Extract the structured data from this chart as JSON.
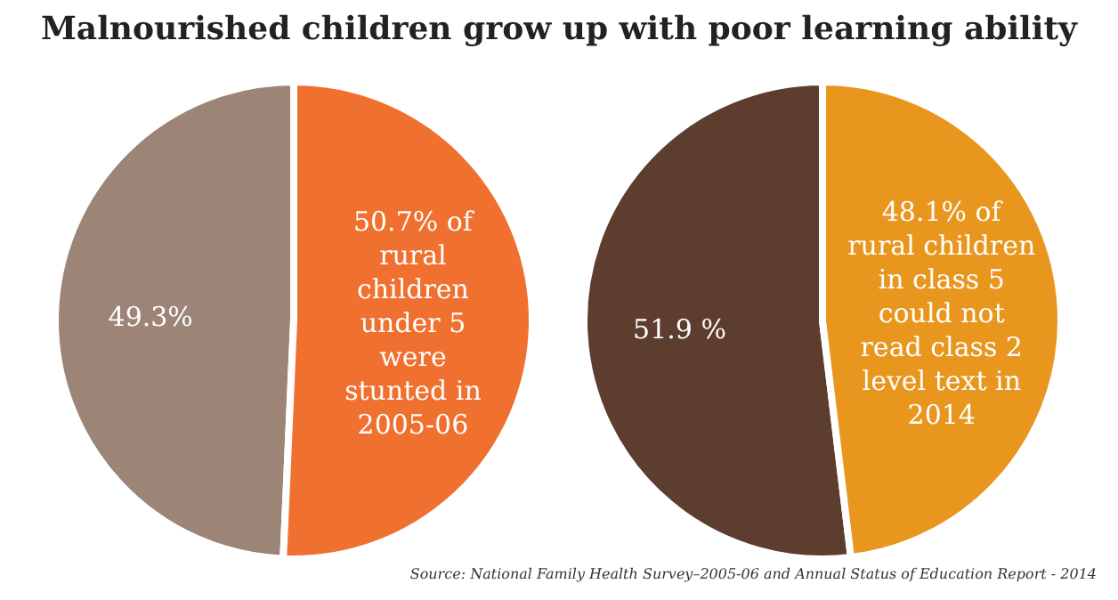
{
  "chart_data": [
    {
      "type": "pie",
      "title": "Malnourished children grow up with poor learning ability",
      "categories": [
        null,
        null
      ],
      "values": [
        49.3,
        50.7
      ],
      "colors": [
        "#9c8577",
        "#f07030"
      ],
      "value_labels": [
        "49.3%",
        "50.7% of\nrural\nchildren\nunder 5\nwere\nstunted in\n2005-06"
      ]
    },
    {
      "type": "pie",
      "categories": [
        null,
        null
      ],
      "values": [
        51.9,
        48.1
      ],
      "colors": [
        "#5c3d2e",
        "#e8961e"
      ],
      "value_labels": [
        "51.9 %",
        "48.1% of\nrural children\nin class 5\ncould not\nread class 2\nlevel text in\n2014"
      ],
      "annotations": [
        "Source: National Family Health Survey–2005-06 and Annual Status of Education Report - 2014"
      ]
    }
  ]
}
